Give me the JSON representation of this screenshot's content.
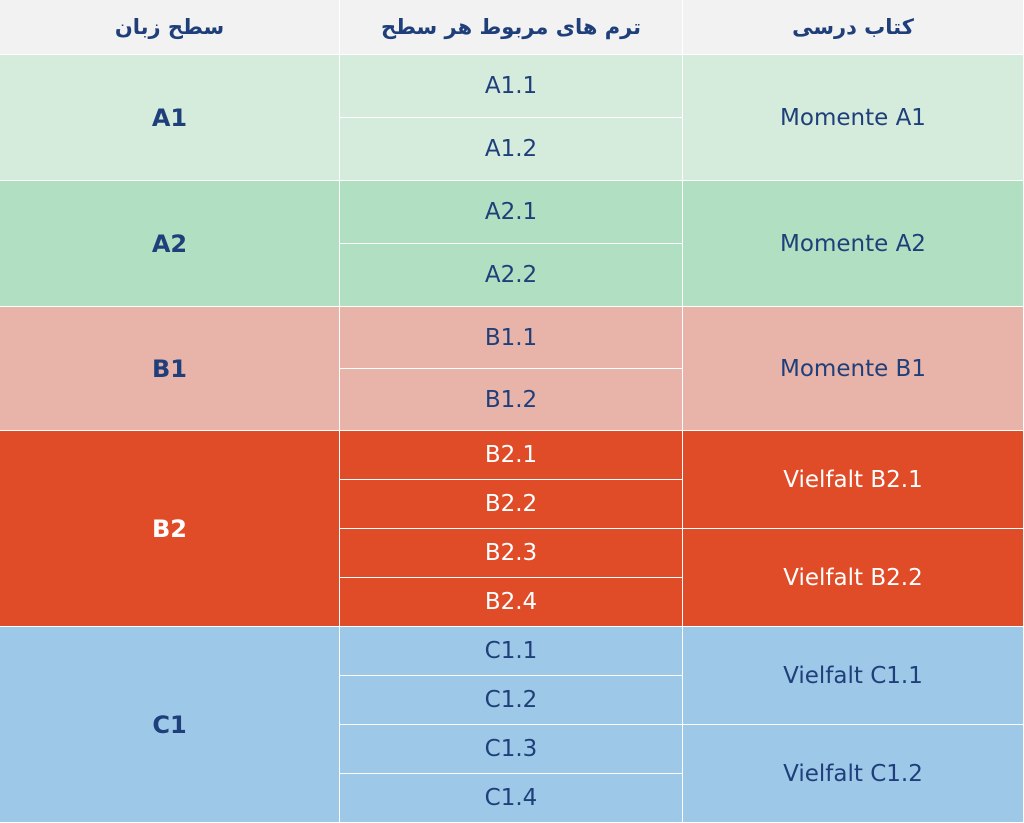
{
  "header": {
    "level": "سطح زبان",
    "terms": "ترم های مربوط هر سطح",
    "book": "کتاب درسی"
  },
  "levels": [
    "A1",
    "A2",
    "B1",
    "B2",
    "C1"
  ],
  "terms": [
    "A1.1",
    "A1.2",
    "A2.1",
    "A2.2",
    "B1.1",
    "B1.2",
    "B2.1",
    "B2.2",
    "B2.3",
    "B2.4",
    "C1.1",
    "C1.2",
    "C1.3",
    "C1.4"
  ],
  "books": [
    "Momente A1",
    "Momente A2",
    "Momente B1",
    "Vielfalt B2.1",
    "Vielfalt B2.2",
    "Vielfalt C1.1",
    "Vielfalt C1.2"
  ],
  "colors": {
    "A1": "#d5ecdc",
    "A2": "#b1dfc1",
    "B1": "#e8b3a9",
    "B2": "#e04c27",
    "C1": "#9ec8e8",
    "header": "#f2f2f2",
    "text_dark": "#1f3f7a",
    "text_light": "#ffffff"
  }
}
